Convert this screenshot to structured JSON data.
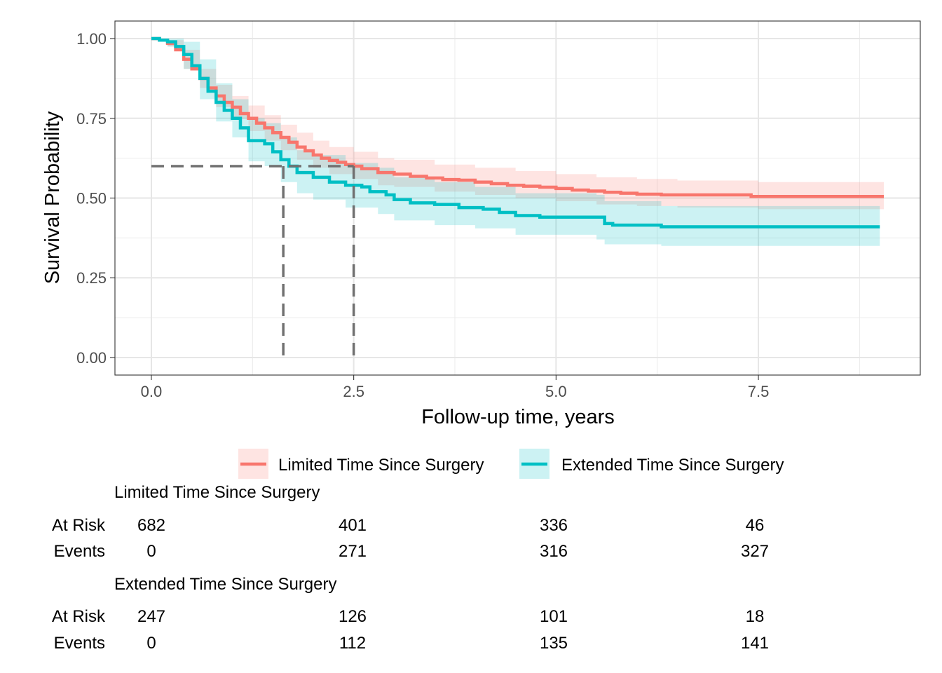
{
  "chart_data": {
    "type": "line",
    "subtype": "kaplan-meier",
    "xlabel": "Follow-up time, years",
    "ylabel": "Survival Probability",
    "xlim": [
      -0.45,
      9.5
    ],
    "ylim": [
      -0.055,
      1.055
    ],
    "x_ticks": [
      0,
      2.5,
      5,
      7.5
    ],
    "x_tick_labels": [
      "0.0",
      "2.5",
      "5.0",
      "7.5"
    ],
    "y_ticks": [
      0,
      0.25,
      0.5,
      0.75,
      1.0
    ],
    "y_tick_labels": [
      "0.00",
      "0.25",
      "0.50",
      "0.75",
      "1.00"
    ],
    "grid": true,
    "legend_position": "bottom",
    "series": [
      {
        "name": "Limited Time Since Surgery",
        "color": "#f8766d",
        "band_color": "#f8766d",
        "points": [
          [
            0,
            1.0
          ],
          [
            0.1,
            0.995
          ],
          [
            0.2,
            0.985
          ],
          [
            0.3,
            0.965
          ],
          [
            0.4,
            0.935
          ],
          [
            0.5,
            0.905
          ],
          [
            0.6,
            0.875
          ],
          [
            0.7,
            0.845
          ],
          [
            0.8,
            0.82
          ],
          [
            0.9,
            0.8
          ],
          [
            1.0,
            0.785
          ],
          [
            1.1,
            0.765
          ],
          [
            1.2,
            0.75
          ],
          [
            1.3,
            0.735
          ],
          [
            1.4,
            0.72
          ],
          [
            1.5,
            0.705
          ],
          [
            1.6,
            0.69
          ],
          [
            1.7,
            0.675
          ],
          [
            1.8,
            0.66
          ],
          [
            1.9,
            0.648
          ],
          [
            2.0,
            0.635
          ],
          [
            2.1,
            0.625
          ],
          [
            2.2,
            0.618
          ],
          [
            2.3,
            0.612
          ],
          [
            2.4,
            0.605
          ],
          [
            2.5,
            0.6
          ],
          [
            2.6,
            0.592
          ],
          [
            2.8,
            0.58
          ],
          [
            3.0,
            0.575
          ],
          [
            3.2,
            0.568
          ],
          [
            3.4,
            0.563
          ],
          [
            3.6,
            0.558
          ],
          [
            3.8,
            0.556
          ],
          [
            4.0,
            0.55
          ],
          [
            4.2,
            0.545
          ],
          [
            4.4,
            0.54
          ],
          [
            4.6,
            0.537
          ],
          [
            4.8,
            0.534
          ],
          [
            5.0,
            0.53
          ],
          [
            5.2,
            0.525
          ],
          [
            5.4,
            0.522
          ],
          [
            5.6,
            0.518
          ],
          [
            5.8,
            0.515
          ],
          [
            6.0,
            0.512
          ],
          [
            6.3,
            0.51
          ],
          [
            7.4,
            0.51
          ],
          [
            7.41,
            0.505
          ],
          [
            9.05,
            0.505
          ]
        ],
        "ci_upper": [
          [
            0,
            1.0
          ],
          [
            0.2,
            0.995
          ],
          [
            0.4,
            0.965
          ],
          [
            0.6,
            0.905
          ],
          [
            0.8,
            0.855
          ],
          [
            1.0,
            0.82
          ],
          [
            1.2,
            0.79
          ],
          [
            1.4,
            0.76
          ],
          [
            1.6,
            0.73
          ],
          [
            1.8,
            0.705
          ],
          [
            2.0,
            0.68
          ],
          [
            2.2,
            0.66
          ],
          [
            2.5,
            0.645
          ],
          [
            2.8,
            0.625
          ],
          [
            3.0,
            0.62
          ],
          [
            3.5,
            0.605
          ],
          [
            4.0,
            0.595
          ],
          [
            4.5,
            0.585
          ],
          [
            5.0,
            0.575
          ],
          [
            5.5,
            0.565
          ],
          [
            6.0,
            0.56
          ],
          [
            6.5,
            0.555
          ],
          [
            7.4,
            0.555
          ],
          [
            7.5,
            0.55
          ],
          [
            9.05,
            0.55
          ]
        ],
        "ci_lower": [
          [
            0,
            1.0
          ],
          [
            0.2,
            0.975
          ],
          [
            0.4,
            0.905
          ],
          [
            0.6,
            0.845
          ],
          [
            0.8,
            0.785
          ],
          [
            1.0,
            0.75
          ],
          [
            1.2,
            0.71
          ],
          [
            1.4,
            0.68
          ],
          [
            1.6,
            0.65
          ],
          [
            1.8,
            0.62
          ],
          [
            2.0,
            0.595
          ],
          [
            2.2,
            0.575
          ],
          [
            2.5,
            0.56
          ],
          [
            2.8,
            0.54
          ],
          [
            3.0,
            0.535
          ],
          [
            3.5,
            0.52
          ],
          [
            4.0,
            0.51
          ],
          [
            4.5,
            0.5
          ],
          [
            5.0,
            0.49
          ],
          [
            5.5,
            0.48
          ],
          [
            6.0,
            0.475
          ],
          [
            6.5,
            0.47
          ],
          [
            7.4,
            0.47
          ],
          [
            7.5,
            0.465
          ],
          [
            9.05,
            0.465
          ]
        ]
      },
      {
        "name": "Extended Time Since Surgery",
        "color": "#00bfc4",
        "band_color": "#00bfc4",
        "points": [
          [
            0,
            1.0
          ],
          [
            0.1,
            0.995
          ],
          [
            0.2,
            0.99
          ],
          [
            0.3,
            0.975
          ],
          [
            0.4,
            0.95
          ],
          [
            0.5,
            0.915
          ],
          [
            0.6,
            0.875
          ],
          [
            0.7,
            0.835
          ],
          [
            0.8,
            0.8
          ],
          [
            0.9,
            0.775
          ],
          [
            1.0,
            0.75
          ],
          [
            1.1,
            0.72
          ],
          [
            1.2,
            0.68
          ],
          [
            1.4,
            0.67
          ],
          [
            1.5,
            0.645
          ],
          [
            1.6,
            0.62
          ],
          [
            1.7,
            0.6
          ],
          [
            1.8,
            0.58
          ],
          [
            2.0,
            0.565
          ],
          [
            2.2,
            0.55
          ],
          [
            2.4,
            0.54
          ],
          [
            2.6,
            0.535
          ],
          [
            2.7,
            0.52
          ],
          [
            2.9,
            0.51
          ],
          [
            3.0,
            0.495
          ],
          [
            3.2,
            0.485
          ],
          [
            3.5,
            0.48
          ],
          [
            3.8,
            0.47
          ],
          [
            4.1,
            0.465
          ],
          [
            4.3,
            0.455
          ],
          [
            4.5,
            0.445
          ],
          [
            4.8,
            0.44
          ],
          [
            5.5,
            0.44
          ],
          [
            5.6,
            0.42
          ],
          [
            5.7,
            0.415
          ],
          [
            6.3,
            0.41
          ],
          [
            9.0,
            0.41
          ]
        ],
        "ci_upper": [
          [
            0,
            1.0
          ],
          [
            0.2,
            1.0
          ],
          [
            0.4,
            0.99
          ],
          [
            0.6,
            0.935
          ],
          [
            0.8,
            0.86
          ],
          [
            1.0,
            0.81
          ],
          [
            1.2,
            0.75
          ],
          [
            1.4,
            0.735
          ],
          [
            1.6,
            0.69
          ],
          [
            1.8,
            0.65
          ],
          [
            2.0,
            0.635
          ],
          [
            2.4,
            0.61
          ],
          [
            2.8,
            0.595
          ],
          [
            3.0,
            0.565
          ],
          [
            3.5,
            0.55
          ],
          [
            4.0,
            0.535
          ],
          [
            4.5,
            0.515
          ],
          [
            5.5,
            0.51
          ],
          [
            5.6,
            0.49
          ],
          [
            6.3,
            0.475
          ],
          [
            9.0,
            0.475
          ]
        ],
        "ci_lower": [
          [
            0,
            1.0
          ],
          [
            0.2,
            0.975
          ],
          [
            0.4,
            0.905
          ],
          [
            0.6,
            0.81
          ],
          [
            0.8,
            0.74
          ],
          [
            1.0,
            0.69
          ],
          [
            1.2,
            0.615
          ],
          [
            1.4,
            0.6
          ],
          [
            1.6,
            0.55
          ],
          [
            1.8,
            0.515
          ],
          [
            2.0,
            0.495
          ],
          [
            2.4,
            0.47
          ],
          [
            2.8,
            0.45
          ],
          [
            3.0,
            0.43
          ],
          [
            3.5,
            0.415
          ],
          [
            4.0,
            0.405
          ],
          [
            4.5,
            0.385
          ],
          [
            5.5,
            0.37
          ],
          [
            5.6,
            0.355
          ],
          [
            6.3,
            0.35
          ],
          [
            9.0,
            0.35
          ]
        ]
      }
    ],
    "reference_lines": [
      {
        "y": 0.6,
        "x_end": 2.5
      },
      {
        "x": 1.63,
        "y_end": 0.6
      },
      {
        "x": 2.5,
        "y_end": 0.6
      }
    ],
    "risk_table": {
      "times": [
        0,
        2.5,
        5,
        7.5
      ],
      "groups": [
        {
          "title": "Limited Time Since Surgery",
          "rows": [
            {
              "label": "At Risk",
              "values": [
                "682",
                "401",
                "336",
                "46"
              ]
            },
            {
              "label": "Events",
              "values": [
                "0",
                "271",
                "316",
                "327"
              ]
            }
          ]
        },
        {
          "title": "Extended Time Since Surgery",
          "rows": [
            {
              "label": "At Risk",
              "values": [
                "247",
                "126",
                "101",
                "18"
              ]
            },
            {
              "label": "Events",
              "values": [
                "0",
                "112",
                "135",
                "141"
              ]
            }
          ]
        }
      ]
    }
  }
}
